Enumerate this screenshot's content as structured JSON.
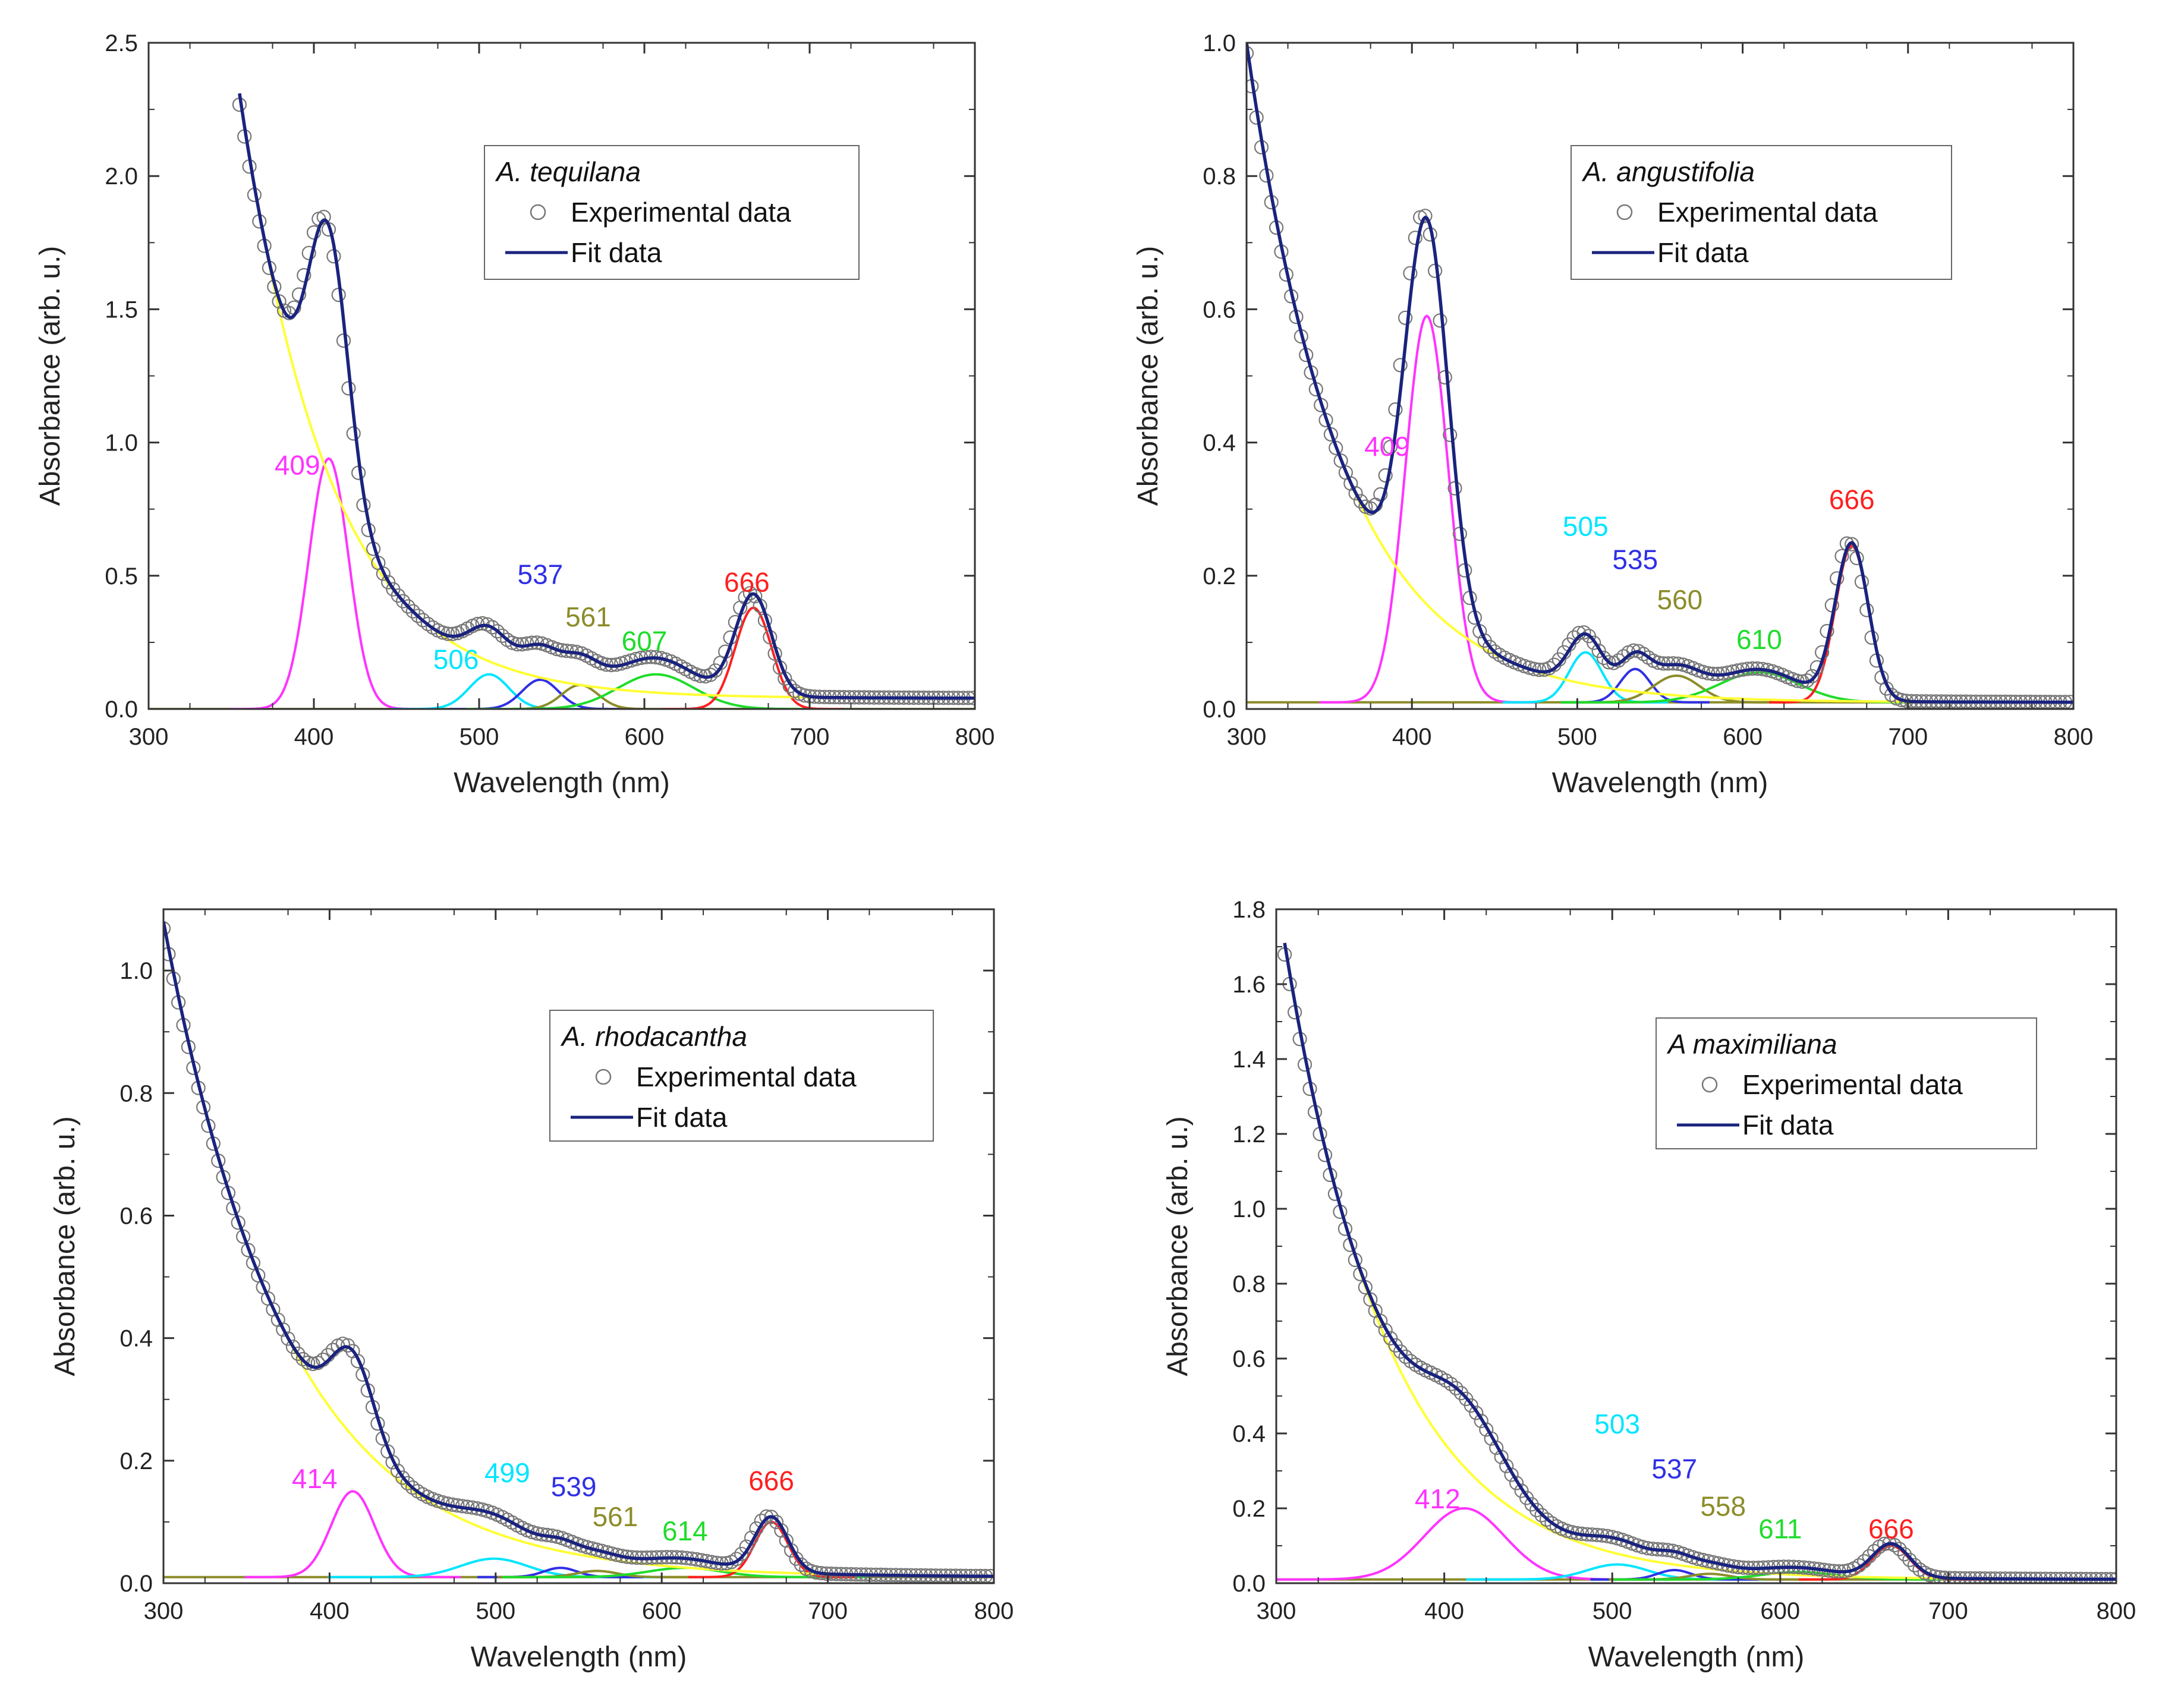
{
  "colors": {
    "magenta": "#ff33ff",
    "cyan": "#00e5ff",
    "blue": "#2f2fe6",
    "olive": "#8c8c2a",
    "green": "#1fdc2a",
    "red": "#ff1f1f",
    "yellow": "#ffff33",
    "fit": "#1a237e",
    "marker": "#777777"
  },
  "chart_data": [
    {
      "type": "line",
      "panel": "top-left",
      "legend_title": "A. tequilana",
      "legend": {
        "experimental": "Experimental data",
        "fit": "Fit data"
      },
      "xlabel": "Wavelength    (nm)",
      "ylabel": "Absorbance    (arb. u.)",
      "xlim": [
        300,
        800
      ],
      "ylim": [
        0,
        2.5
      ],
      "xticks": [
        "300",
        "400",
        "500",
        "600",
        "700",
        "800"
      ],
      "yticks": [
        "0.0",
        "0.5",
        "1.0",
        "1.5",
        "2.0",
        "2.5"
      ],
      "data_start": 355,
      "baseline": 0.0,
      "background": {
        "A": 2.27,
        "k": 0.0185,
        "offset": 0.04
      },
      "exp_offset": 0.02,
      "peaks": [
        {
          "label": "409",
          "center": 409,
          "amp": 0.94,
          "sigma": 12,
          "color": "magenta",
          "label_x": 390,
          "label_y": 0.88
        },
        {
          "label": "506",
          "center": 506,
          "amp": 0.13,
          "sigma": 12,
          "color": "cyan",
          "label_x": 486,
          "label_y": 0.15
        },
        {
          "label": "537",
          "center": 537,
          "amp": 0.11,
          "sigma": 11,
          "color": "blue",
          "label_x": 537,
          "label_y": 0.47
        },
        {
          "label": "561",
          "center": 561,
          "amp": 0.09,
          "sigma": 11,
          "color": "olive",
          "label_x": 566,
          "label_y": 0.31
        },
        {
          "label": "607",
          "center": 607,
          "amp": 0.13,
          "sigma": 23,
          "color": "green",
          "label_x": 600,
          "label_y": 0.22
        },
        {
          "label": "666",
          "center": 666,
          "amp": 0.38,
          "sigma": 11,
          "color": "red",
          "label_x": 662,
          "label_y": 0.44
        }
      ]
    },
    {
      "type": "line",
      "panel": "top-right",
      "legend_title": "A. angustifolia",
      "legend": {
        "experimental": "Experimental data",
        "fit": "Fit data"
      },
      "xlabel": "Wavelength    (nm)",
      "ylabel": "Absorbance    (arb. u.)",
      "xlim": [
        300,
        800
      ],
      "ylim": [
        0,
        1.0
      ],
      "xticks": [
        "300",
        "400",
        "500",
        "600",
        "700",
        "800"
      ],
      "yticks": [
        "0.0",
        "0.2",
        "0.4",
        "0.6",
        "0.8",
        "1.0"
      ],
      "data_start": 300,
      "baseline": 0.01,
      "background": {
        "A": 0.99,
        "k": 0.0175,
        "offset": 0.01
      },
      "exp_offset": 0.01,
      "peaks": [
        {
          "label": "409",
          "center": 409,
          "amp": 0.58,
          "sigma": 13,
          "color": "magenta",
          "label_x": 385,
          "label_y": 0.38
        },
        {
          "label": "505",
          "center": 505,
          "amp": 0.075,
          "sigma": 10,
          "color": "cyan",
          "label_x": 505,
          "label_y": 0.26
        },
        {
          "label": "535",
          "center": 535,
          "amp": 0.05,
          "sigma": 9,
          "color": "blue",
          "label_x": 535,
          "label_y": 0.21
        },
        {
          "label": "560",
          "center": 560,
          "amp": 0.04,
          "sigma": 14,
          "color": "olive",
          "label_x": 562,
          "label_y": 0.15
        },
        {
          "label": "610",
          "center": 610,
          "amp": 0.045,
          "sigma": 24,
          "color": "green",
          "label_x": 610,
          "label_y": 0.09
        },
        {
          "label": "666",
          "center": 666,
          "amp": 0.235,
          "sigma": 10,
          "color": "red",
          "label_x": 666,
          "label_y": 0.3
        }
      ]
    },
    {
      "type": "line",
      "panel": "bottom-left",
      "legend_title": "A. rhodacantha",
      "legend": {
        "experimental": "Experimental data",
        "fit": "Fit data"
      },
      "xlabel": "Wavelength    (nm)",
      "ylabel": "Absorbance    (arb. u.)",
      "xlim": [
        300,
        800
      ],
      "ylim": [
        0,
        1.1
      ],
      "xticks": [
        "300",
        "400",
        "500",
        "600",
        "700",
        "800"
      ],
      "yticks": [
        "0.0",
        "0.2",
        "0.4",
        "0.6",
        "0.8",
        "1.0"
      ],
      "data_start": 300,
      "baseline": 0.01,
      "background": {
        "A": 1.07,
        "k": 0.0135,
        "offset": 0.01
      },
      "exp_offset": 0.01,
      "peaks": [
        {
          "label": "414",
          "center": 414,
          "amp": 0.14,
          "sigma": 13,
          "color": "magenta",
          "label_x": 391,
          "label_y": 0.155
        },
        {
          "label": "499",
          "center": 499,
          "amp": 0.03,
          "sigma": 20,
          "color": "cyan",
          "label_x": 507,
          "label_y": 0.165
        },
        {
          "label": "539",
          "center": 539,
          "amp": 0.015,
          "sigma": 10,
          "color": "blue",
          "label_x": 547,
          "label_y": 0.142
        },
        {
          "label": "561",
          "center": 561,
          "amp": 0.01,
          "sigma": 12,
          "color": "olive",
          "label_x": 572,
          "label_y": 0.093
        },
        {
          "label": "614",
          "center": 614,
          "amp": 0.015,
          "sigma": 22,
          "color": "green",
          "label_x": 614,
          "label_y": 0.07
        },
        {
          "label": "666",
          "center": 666,
          "amp": 0.09,
          "sigma": 10,
          "color": "red",
          "label_x": 666,
          "label_y": 0.152
        }
      ]
    },
    {
      "type": "line",
      "panel": "bottom-right",
      "legend_title": "A maximiliana",
      "legend": {
        "experimental": "Experimental data",
        "fit": "Fit data"
      },
      "xlabel": "Wavelength    (nm)",
      "ylabel": "Absorbance    (arb. u.)",
      "xlim": [
        300,
        800
      ],
      "ylim": [
        0,
        1.8
      ],
      "xticks": [
        "300",
        "400",
        "500",
        "600",
        "700",
        "800"
      ],
      "yticks": [
        "0.0",
        "0.2",
        "0.4",
        "0.6",
        "0.8",
        "1.0",
        "1.2",
        "1.4",
        "1.6",
        "1.8"
      ],
      "data_start": 305,
      "baseline": 0.01,
      "background": {
        "A": 1.7,
        "k": 0.0162,
        "offset": 0.01
      },
      "exp_offset": 0.01,
      "peaks": [
        {
          "label": "412",
          "center": 412,
          "amp": 0.19,
          "sigma": 24,
          "color": "magenta",
          "label_x": 396,
          "label_y": 0.2
        },
        {
          "label": "503",
          "center": 503,
          "amp": 0.04,
          "sigma": 18,
          "color": "cyan",
          "label_x": 503,
          "label_y": 0.4
        },
        {
          "label": "537",
          "center": 537,
          "amp": 0.025,
          "sigma": 10,
          "color": "blue",
          "label_x": 537,
          "label_y": 0.28
        },
        {
          "label": "558",
          "center": 558,
          "amp": 0.015,
          "sigma": 12,
          "color": "olive",
          "label_x": 566,
          "label_y": 0.18
        },
        {
          "label": "611",
          "center": 611,
          "amp": 0.02,
          "sigma": 22,
          "color": "green",
          "label_x": 600,
          "label_y": 0.12
        },
        {
          "label": "666",
          "center": 666,
          "amp": 0.09,
          "sigma": 11,
          "color": "red",
          "label_x": 666,
          "label_y": 0.12
        }
      ]
    }
  ]
}
